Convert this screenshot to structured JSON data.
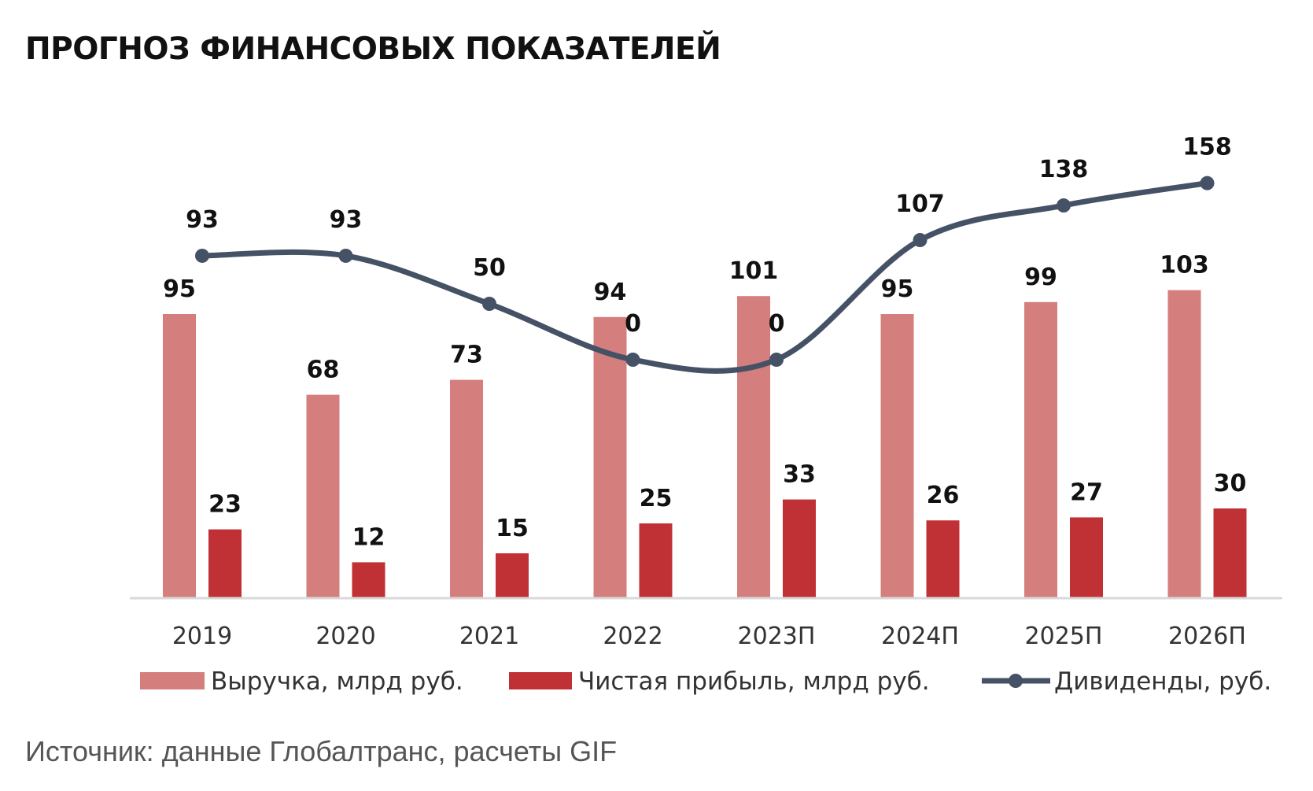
{
  "title": "ПРОГНОЗ ФИНАНСОВЫХ ПОКАЗАТЕЛЕЙ",
  "source": "Источник: данные Глобалтранс, расчеты GIF",
  "colors": {
    "revenue": "#d47e7e",
    "profit": "#bf3134",
    "dividends": "#455266",
    "axis": "#d9d9d9"
  },
  "chart_data": {
    "type": "bar",
    "categories": [
      "2019",
      "2020",
      "2021",
      "2022",
      "2023П",
      "2024П",
      "2025П",
      "2026П"
    ],
    "series": [
      {
        "name": "Выручка, млрд руб.",
        "type": "bar",
        "values": [
          95,
          68,
          73,
          94,
          101,
          95,
          99,
          103
        ]
      },
      {
        "name": "Чистая прибыль, млрд руб.",
        "type": "bar",
        "values": [
          23,
          12,
          15,
          25,
          33,
          26,
          27,
          30
        ]
      },
      {
        "name": "Дивиденды, руб.",
        "type": "line",
        "smooth": true,
        "values": [
          93,
          93,
          50,
          0,
          0,
          107,
          138,
          158
        ]
      }
    ],
    "legend_position": "bottom",
    "grid": false,
    "y_axis_visible": false
  }
}
